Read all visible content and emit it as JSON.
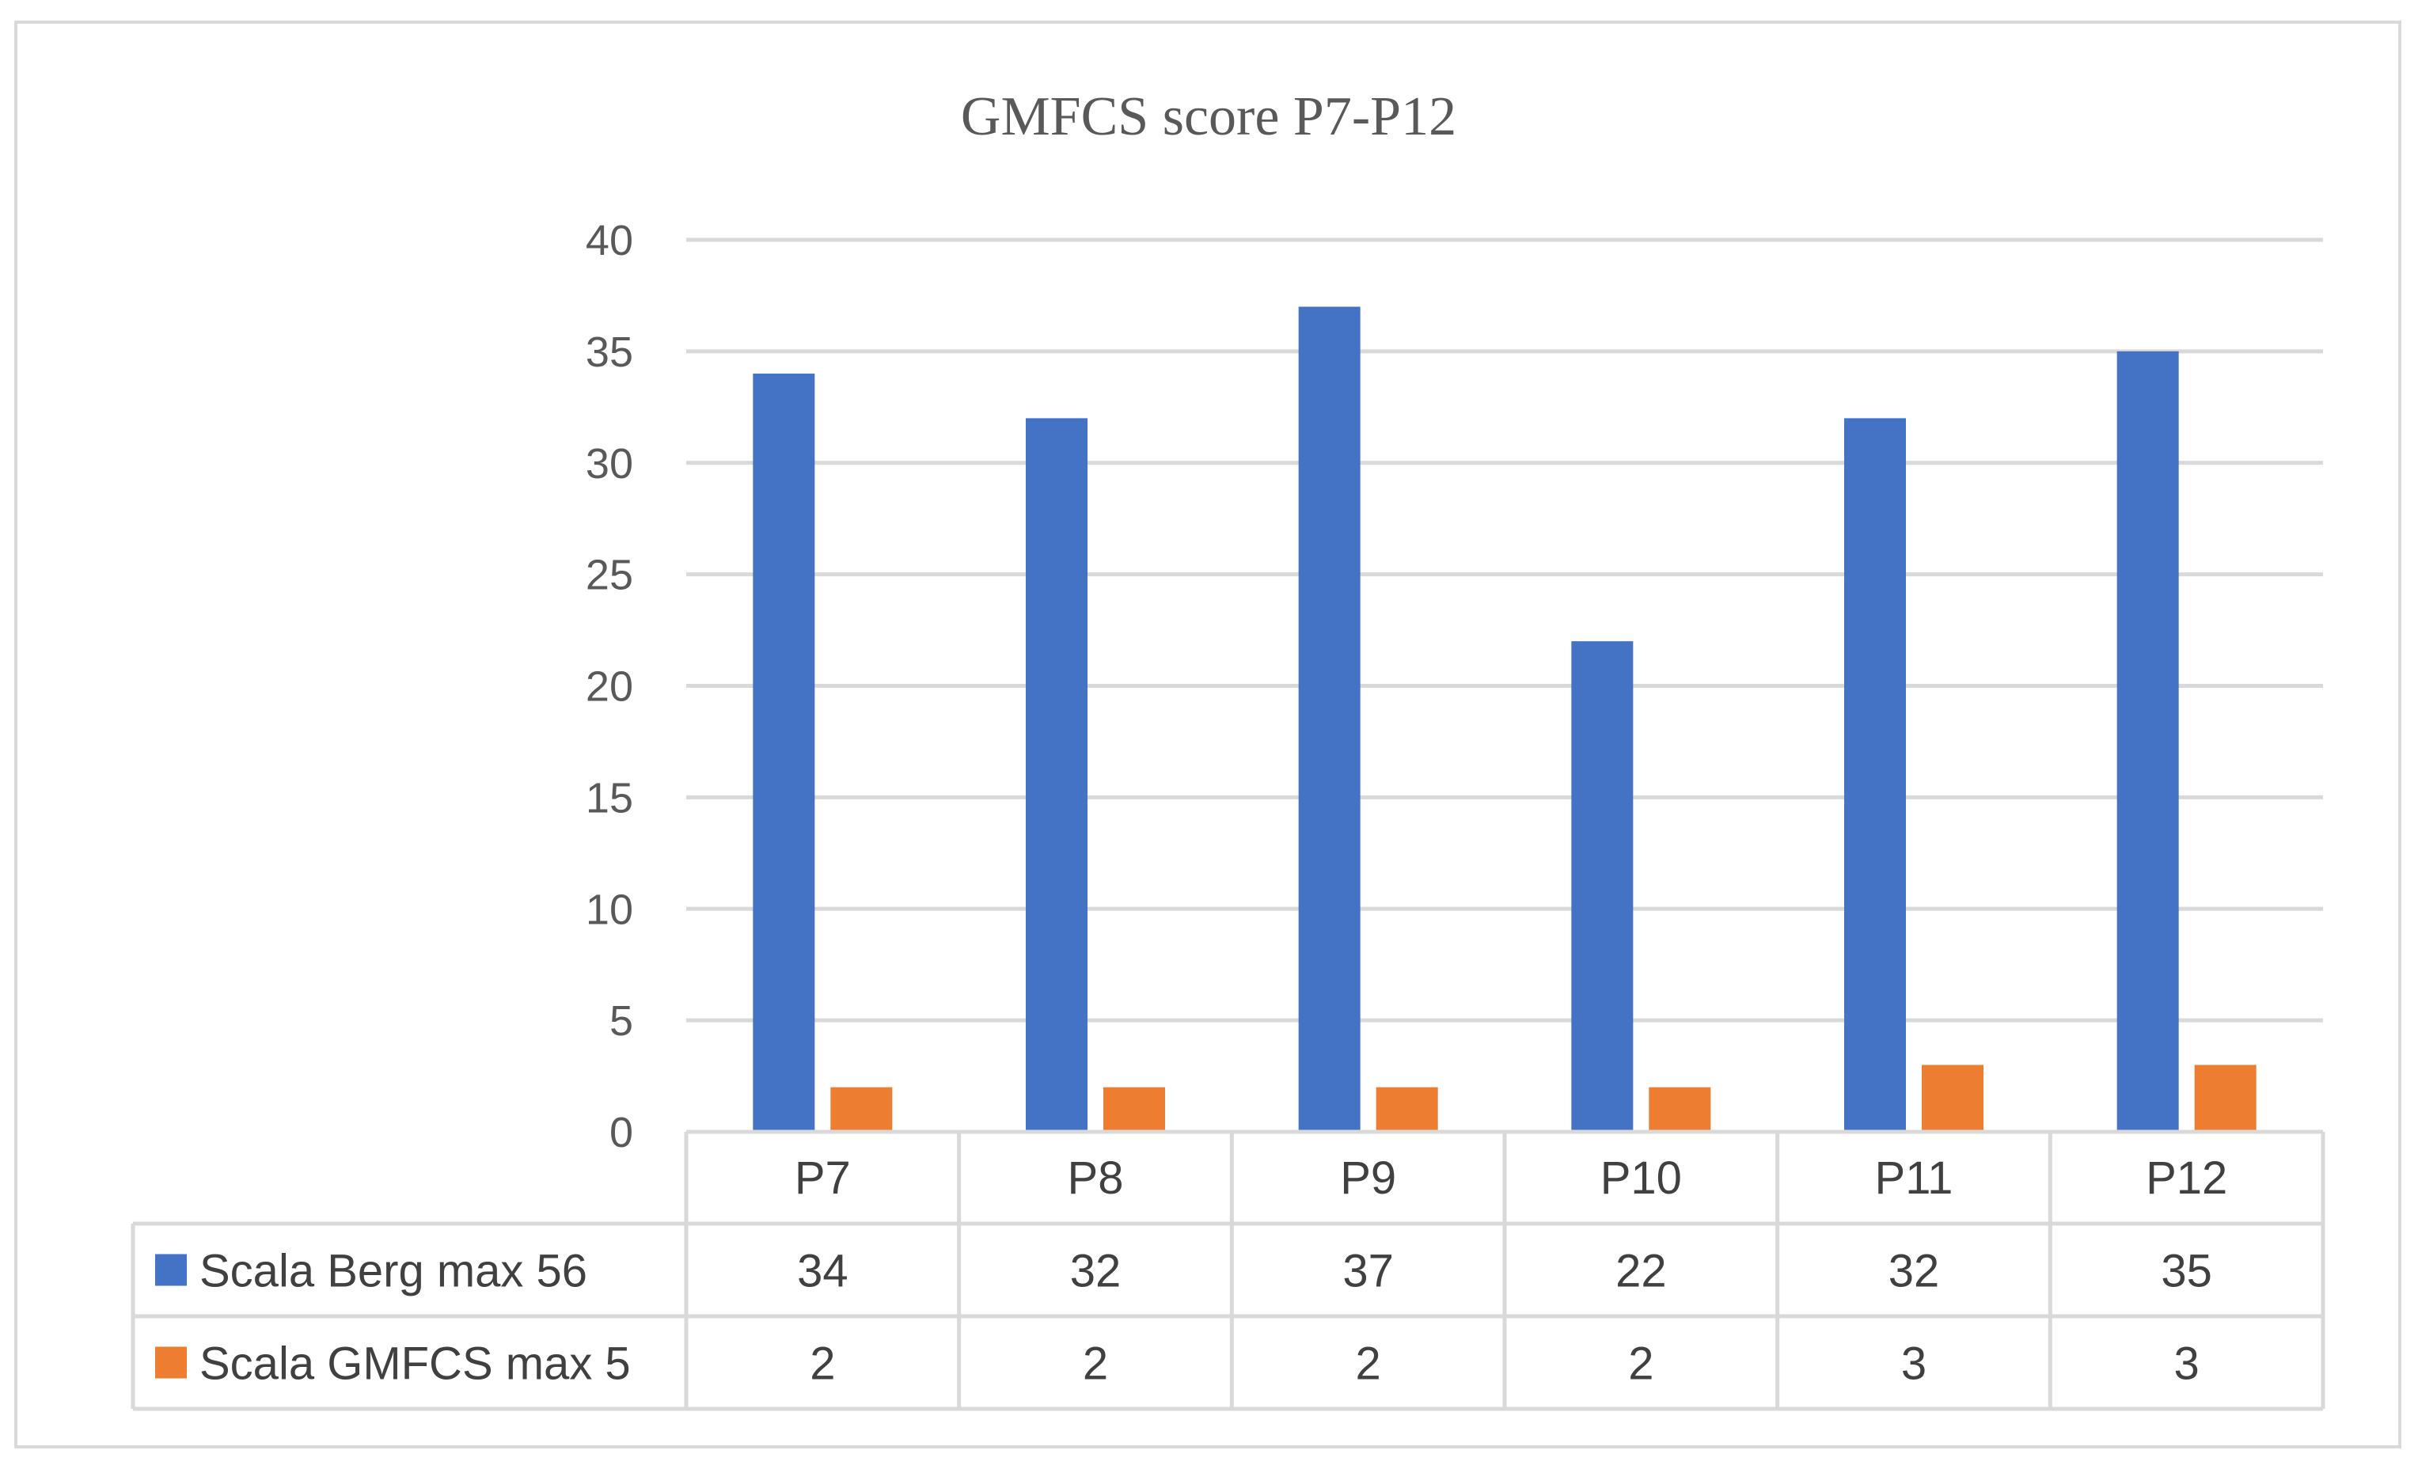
{
  "chart_data": {
    "type": "bar",
    "title": "GMFCS score P7-P12",
    "xlabel": "",
    "ylabel": "",
    "categories": [
      "P7",
      "P8",
      "P9",
      "P10",
      "P11",
      "P12"
    ],
    "series": [
      {
        "name": "Scala Berg max 56",
        "values": [
          34,
          32,
          37,
          22,
          32,
          35
        ],
        "color": "#4472C4"
      },
      {
        "name": "Scala GMFCS max 5",
        "values": [
          2,
          2,
          2,
          2,
          3,
          3
        ],
        "color": "#ED7D31"
      }
    ],
    "ylim": [
      0,
      40
    ],
    "yticks": [
      0,
      5,
      10,
      15,
      20,
      25,
      30,
      35,
      40
    ],
    "grid": true,
    "legend": "data table below chart",
    "data_table": true
  }
}
